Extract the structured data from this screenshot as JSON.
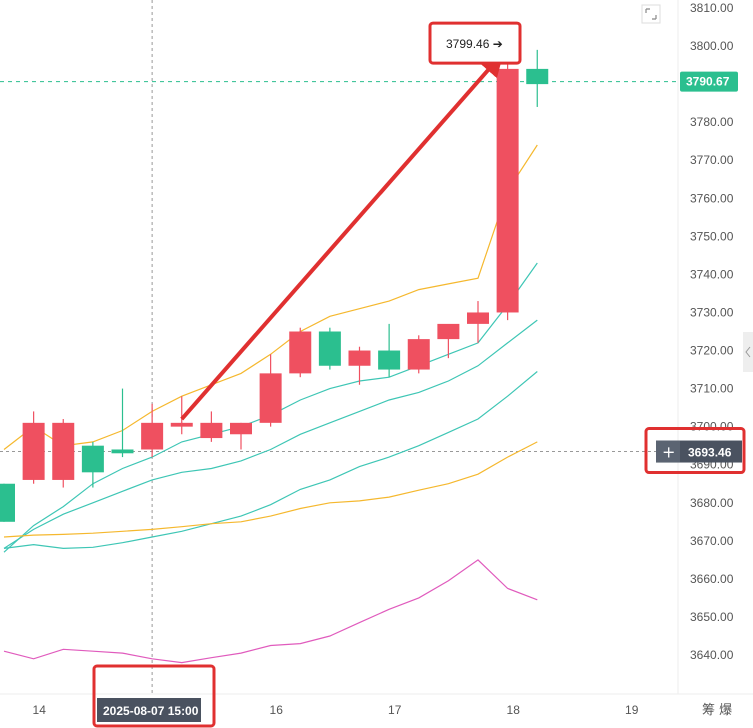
{
  "chart_data": {
    "type": "candlestick",
    "y_ticks": [
      "3810.00",
      "3800.00",
      "3790.00",
      "3780.00",
      "3770.00",
      "3760.00",
      "3750.00",
      "3740.00",
      "3730.00",
      "3720.00",
      "3710.00",
      "3700.00",
      "3690.00",
      "3680.00",
      "3670.00",
      "3660.00",
      "3650.00",
      "3640.00"
    ],
    "y_range": [
      3634,
      3812
    ],
    "x_range": [
      13.7,
      19.55
    ],
    "x_ticks": [
      {
        "v": 14,
        "label": "14"
      },
      {
        "v": 16,
        "label": "16"
      },
      {
        "v": 17,
        "label": "17"
      },
      {
        "v": 18,
        "label": "18"
      },
      {
        "v": 19,
        "label": "19"
      }
    ],
    "candles": [
      {
        "x": 13.7,
        "open": 3685,
        "high": 3685,
        "low": 3675,
        "close": 3675
      },
      {
        "x": 13.95,
        "open": 3686,
        "high": 3704,
        "low": 3685,
        "close": 3701
      },
      {
        "x": 14.2,
        "open": 3686,
        "high": 3702,
        "low": 3684,
        "close": 3701
      },
      {
        "x": 14.45,
        "open": 3695,
        "high": 3696,
        "low": 3684,
        "close": 3688
      },
      {
        "x": 14.7,
        "open": 3694,
        "high": 3710,
        "low": 3692,
        "close": 3693
      },
      {
        "x": 14.95,
        "open": 3694,
        "high": 3706,
        "low": 3692,
        "close": 3701
      },
      {
        "x": 15.2,
        "open": 3700,
        "high": 3708,
        "low": 3698,
        "close": 3701
      },
      {
        "x": 15.45,
        "open": 3697,
        "high": 3704,
        "low": 3696,
        "close": 3701
      },
      {
        "x": 15.7,
        "open": 3698,
        "high": 3701,
        "low": 3694,
        "close": 3701
      },
      {
        "x": 15.95,
        "open": 3701,
        "high": 3719,
        "low": 3700,
        "close": 3714
      },
      {
        "x": 16.2,
        "open": 3714,
        "high": 3726,
        "low": 3713,
        "close": 3725
      },
      {
        "x": 16.45,
        "open": 3725,
        "high": 3726,
        "low": 3715,
        "close": 3716
      },
      {
        "x": 16.7,
        "open": 3716,
        "high": 3721,
        "low": 3711,
        "close": 3720
      },
      {
        "x": 16.95,
        "open": 3720,
        "high": 3727,
        "low": 3713,
        "close": 3715
      },
      {
        "x": 17.2,
        "open": 3715,
        "high": 3724,
        "low": 3714,
        "close": 3723
      },
      {
        "x": 17.45,
        "open": 3723,
        "high": 3726,
        "low": 3718,
        "close": 3727
      },
      {
        "x": 17.7,
        "open": 3727,
        "high": 3733,
        "low": 3722,
        "close": 3730
      },
      {
        "x": 17.95,
        "open": 3730,
        "high": 3800,
        "low": 3728,
        "close": 3794
      },
      {
        "x": 18.2,
        "open": 3794,
        "high": 3799,
        "low": 3784,
        "close": 3790
      }
    ],
    "lines": [
      {
        "color": "#f5b82e",
        "points": [
          [
            13.7,
            3694
          ],
          [
            13.95,
            3700
          ],
          [
            14.2,
            3695
          ],
          [
            14.45,
            3696
          ],
          [
            14.7,
            3699
          ],
          [
            14.95,
            3704
          ],
          [
            15.2,
            3708
          ],
          [
            15.45,
            3711
          ],
          [
            15.7,
            3714
          ],
          [
            15.95,
            3719
          ],
          [
            16.2,
            3725
          ],
          [
            16.45,
            3729
          ],
          [
            16.7,
            3731
          ],
          [
            16.95,
            3733
          ],
          [
            17.2,
            3736
          ],
          [
            17.45,
            3737.5
          ],
          [
            17.7,
            3739
          ],
          [
            17.95,
            3762
          ],
          [
            18.2,
            3774
          ]
        ]
      },
      {
        "color": "#3ec6b5",
        "points": [
          [
            13.7,
            3667
          ],
          [
            13.95,
            3674
          ],
          [
            14.2,
            3679
          ],
          [
            14.45,
            3685
          ],
          [
            14.7,
            3689
          ],
          [
            14.95,
            3692
          ],
          [
            15.2,
            3696
          ],
          [
            15.45,
            3698
          ],
          [
            15.7,
            3700
          ],
          [
            15.95,
            3703
          ],
          [
            16.2,
            3707
          ],
          [
            16.45,
            3710
          ],
          [
            16.7,
            3712
          ],
          [
            16.95,
            3713
          ],
          [
            17.2,
            3716
          ],
          [
            17.45,
            3719
          ],
          [
            17.7,
            3722
          ],
          [
            17.95,
            3732
          ],
          [
            18.2,
            3743
          ]
        ]
      },
      {
        "color": "#3ec6b5",
        "points": [
          [
            13.7,
            3668
          ],
          [
            13.95,
            3673
          ],
          [
            14.2,
            3677
          ],
          [
            14.45,
            3680
          ],
          [
            14.7,
            3683
          ],
          [
            14.95,
            3686
          ],
          [
            15.2,
            3688
          ],
          [
            15.45,
            3689
          ],
          [
            15.7,
            3691
          ],
          [
            15.95,
            3694
          ],
          [
            16.2,
            3698
          ],
          [
            16.45,
            3701
          ],
          [
            16.7,
            3704
          ],
          [
            16.95,
            3707
          ],
          [
            17.2,
            3709
          ],
          [
            17.45,
            3712
          ],
          [
            17.7,
            3716
          ],
          [
            17.95,
            3722
          ],
          [
            18.2,
            3728
          ]
        ]
      },
      {
        "color": "#3ec6b5",
        "points": [
          [
            13.7,
            3668
          ],
          [
            13.95,
            3669
          ],
          [
            14.2,
            3668
          ],
          [
            14.45,
            3668.3
          ],
          [
            14.7,
            3669.5
          ],
          [
            14.95,
            3671
          ],
          [
            15.2,
            3672.5
          ],
          [
            15.45,
            3674.5
          ],
          [
            15.7,
            3676.5
          ],
          [
            15.95,
            3679.5
          ],
          [
            16.2,
            3683.5
          ],
          [
            16.45,
            3686
          ],
          [
            16.7,
            3689.5
          ],
          [
            16.95,
            3692
          ],
          [
            17.2,
            3695
          ],
          [
            17.45,
            3698.5
          ],
          [
            17.7,
            3702
          ],
          [
            17.95,
            3708
          ],
          [
            18.2,
            3714.5
          ]
        ]
      },
      {
        "color": "#f5b82e",
        "points": [
          [
            13.7,
            3671
          ],
          [
            13.95,
            3671.5
          ],
          [
            14.2,
            3671.7
          ],
          [
            14.45,
            3672
          ],
          [
            14.7,
            3672.5
          ],
          [
            14.95,
            3673
          ],
          [
            15.2,
            3673.7
          ],
          [
            15.45,
            3674.5
          ],
          [
            15.7,
            3675
          ],
          [
            15.95,
            3676.5
          ],
          [
            16.2,
            3678.5
          ],
          [
            16.45,
            3680
          ],
          [
            16.7,
            3680.5
          ],
          [
            16.95,
            3681.5
          ],
          [
            17.2,
            3683.3
          ],
          [
            17.45,
            3685
          ],
          [
            17.7,
            3687.5
          ],
          [
            17.95,
            3692
          ],
          [
            18.2,
            3696
          ]
        ]
      },
      {
        "color": "#e05bbd",
        "points": [
          [
            13.7,
            3641
          ],
          [
            13.95,
            3639
          ],
          [
            14.2,
            3641.5
          ],
          [
            14.45,
            3641
          ],
          [
            14.7,
            3640.5
          ],
          [
            14.95,
            3639
          ],
          [
            15.2,
            3638
          ],
          [
            15.45,
            3639.3
          ],
          [
            15.7,
            3640.5
          ],
          [
            15.95,
            3642.5
          ],
          [
            16.2,
            3643
          ],
          [
            16.45,
            3645
          ],
          [
            16.7,
            3648.5
          ],
          [
            16.95,
            3652
          ],
          [
            17.2,
            3655
          ],
          [
            17.45,
            3659.5
          ],
          [
            17.7,
            3665
          ],
          [
            17.95,
            3657.5
          ],
          [
            18.2,
            3654.5
          ]
        ]
      }
    ],
    "current_price": "3790.67",
    "current_price_value": 3790.67,
    "crosshair_price": "3693.46",
    "crosshair_price_value": 3693.46,
    "peak_label": "3799.46 ➔",
    "peak_value": 3799.46,
    "crosshair_date": "2025-08-07 15:00",
    "crosshair_x": 14.95,
    "arrow_from": [
      15.2,
      3702
    ],
    "arrow_to": [
      17.85,
      3796
    ],
    "axis_corner_text": "筹 爆",
    "colors": {
      "up": "#ef5060",
      "down": "#2bbf8f",
      "annotation": "#e03030",
      "label_bg": "#4a5260"
    }
  }
}
